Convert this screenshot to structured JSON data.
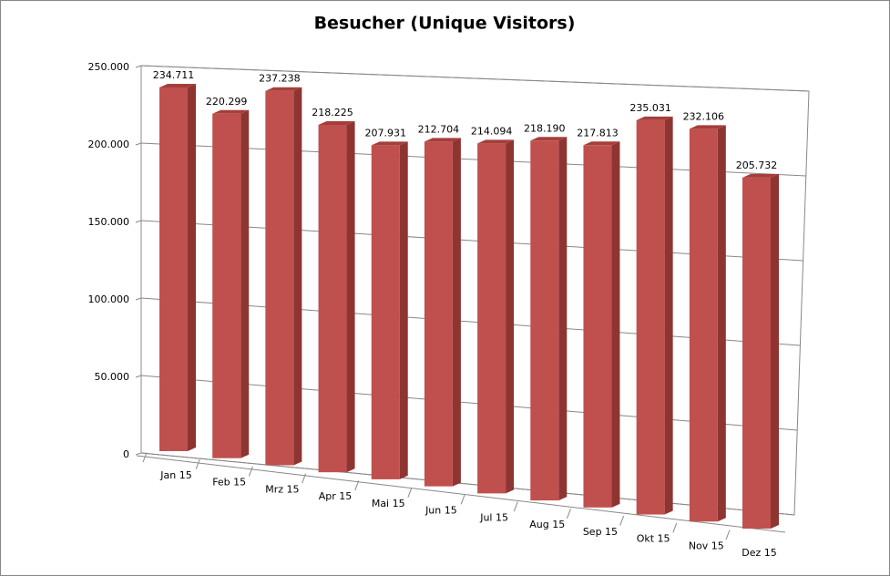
{
  "chart_data": {
    "type": "bar3d",
    "title": "Besucher (Unique Visitors)",
    "categories": [
      "Jan 15",
      "Feb 15",
      "Mrz 15",
      "Apr 15",
      "Mai 15",
      "Jun 15",
      "Jul 15",
      "Aug 15",
      "Sep 15",
      "Okt 15",
      "Nov 15",
      "Dez 15"
    ],
    "values": [
      234711,
      220299,
      237238,
      218225,
      207931,
      212704,
      214094,
      218190,
      217813,
      235031,
      232106,
      205732
    ],
    "value_labels": [
      "234.711",
      "220.299",
      "237.238",
      "218.225",
      "207.931",
      "212.704",
      "214.094",
      "218.190",
      "217.813",
      "235.031",
      "232.106",
      "205.732"
    ],
    "color": "#c0504d",
    "ylim": [
      0,
      250000
    ],
    "yticks": [
      {
        "value": 0,
        "label": "0"
      },
      {
        "value": 50000,
        "label": "50.000"
      },
      {
        "value": 100000,
        "label": "100.000"
      },
      {
        "value": 150000,
        "label": "150.000"
      },
      {
        "value": 200000,
        "label": "200.000"
      },
      {
        "value": 250000,
        "label": "250.000"
      }
    ],
    "grid": true
  }
}
